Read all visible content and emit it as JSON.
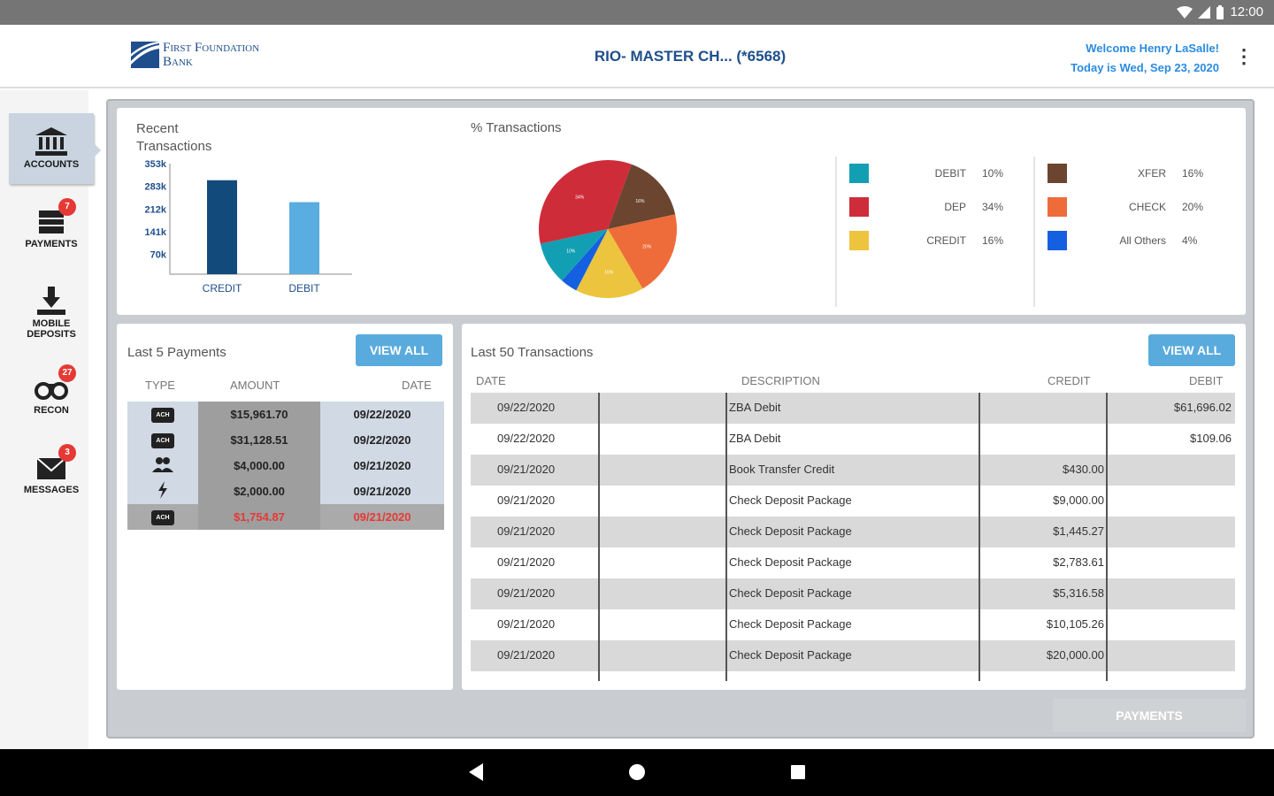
{
  "status_bar": {
    "time": "12:00"
  },
  "header": {
    "bank_name_line1": "First Foundation",
    "bank_name_line2": "Bank",
    "account_title": "RIO- MASTER CH...  (*6568)",
    "welcome": "Welcome Henry LaSalle!",
    "date_line": "Today is Wed, Sep 23, 2020"
  },
  "sidebar": {
    "items": [
      {
        "label": "ACCOUNTS",
        "icon": "bank-icon",
        "badge": ""
      },
      {
        "label": "PAYMENTS",
        "icon": "payments-icon",
        "badge": "7"
      },
      {
        "label": "MOBILE\nDEPOSITS",
        "label1": "MOBILE",
        "label2": "DEPOSITS",
        "icon": "download-icon",
        "badge": ""
      },
      {
        "label": "RECON",
        "icon": "binoculars-icon",
        "badge": "27"
      },
      {
        "label": "MESSAGES",
        "icon": "envelope-icon",
        "badge": "3"
      }
    ]
  },
  "recent_transactions": {
    "title_line1": "Recent",
    "title_line2": "Transactions",
    "chart_data": {
      "type": "bar",
      "categories": [
        "CREDIT",
        "DEBIT"
      ],
      "values": [
        300,
        230
      ],
      "ytick_labels": [
        "353k",
        "283k",
        "212k",
        "141k",
        "70k"
      ],
      "ylim": [
        0,
        353
      ],
      "colors": [
        "#134a7c",
        "#5aade0"
      ]
    }
  },
  "pct_transactions": {
    "title": "% Transactions",
    "chart_data": {
      "type": "pie",
      "labels": [
        "XFER",
        "CHECK",
        "CREDIT",
        "All Others",
        "DEBIT",
        "DEP"
      ],
      "values": [
        16,
        20,
        16,
        4,
        10,
        34
      ],
      "colors": [
        "#6b4530",
        "#ee6c3a",
        "#ecc43e",
        "#1560e0",
        "#139fb3",
        "#cf2c3a"
      ]
    },
    "legend_left": [
      {
        "label": "DEBIT",
        "pct": "10%",
        "color": "#139fb3"
      },
      {
        "label": "DEP",
        "pct": "34%",
        "color": "#cf2c3a"
      },
      {
        "label": "CREDIT",
        "pct": "16%",
        "color": "#ecc43e"
      }
    ],
    "legend_right": [
      {
        "label": "XFER",
        "pct": "16%",
        "color": "#6b4530"
      },
      {
        "label": "CHECK",
        "pct": "20%",
        "color": "#ee6c3a"
      },
      {
        "label": "All Others",
        "pct": "4%",
        "color": "#1560e0"
      }
    ]
  },
  "last_payments": {
    "title": "Last 5 Payments",
    "view_all": "VIEW ALL",
    "columns": [
      "TYPE",
      "AMOUNT",
      "DATE"
    ],
    "rows": [
      {
        "type": "ACH",
        "amount": "$15,961.70",
        "date": "09/22/2020",
        "failed": false
      },
      {
        "type": "ACH",
        "amount": "$31,128.51",
        "date": "09/22/2020",
        "failed": false
      },
      {
        "type": "people",
        "amount": "$4,000.00",
        "date": "09/21/2020",
        "failed": false
      },
      {
        "type": "wire",
        "amount": "$2,000.00",
        "date": "09/21/2020",
        "failed": false
      },
      {
        "type": "ACH",
        "amount": "$1,754.87",
        "date": "09/21/2020",
        "failed": true
      }
    ]
  },
  "last_transactions": {
    "title": "Last 50 Transactions",
    "view_all": "VIEW ALL",
    "columns": [
      "DATE",
      "DESCRIPTION",
      "CREDIT",
      "DEBIT"
    ],
    "rows": [
      {
        "date": "09/22/2020",
        "description": "ZBA Debit",
        "credit": "",
        "debit": "$61,696.02"
      },
      {
        "date": "09/22/2020",
        "description": "ZBA Debit",
        "credit": "",
        "debit": "$109.06"
      },
      {
        "date": "09/21/2020",
        "description": "Book Transfer Credit",
        "credit": "$430.00",
        "debit": ""
      },
      {
        "date": "09/21/2020",
        "description": "Check Deposit Package",
        "credit": "$9,000.00",
        "debit": ""
      },
      {
        "date": "09/21/2020",
        "description": "Check Deposit Package",
        "credit": "$1,445.27",
        "debit": ""
      },
      {
        "date": "09/21/2020",
        "description": "Check Deposit Package",
        "credit": "$2,783.61",
        "debit": ""
      },
      {
        "date": "09/21/2020",
        "description": "Check Deposit Package",
        "credit": "$5,316.58",
        "debit": ""
      },
      {
        "date": "09/21/2020",
        "description": "Check Deposit Package",
        "credit": "$10,105.26",
        "debit": ""
      },
      {
        "date": "09/21/2020",
        "description": "Check Deposit Package",
        "credit": "$20,000.00",
        "debit": ""
      }
    ]
  },
  "footer": {
    "payments_button": "PAYMENTS"
  }
}
